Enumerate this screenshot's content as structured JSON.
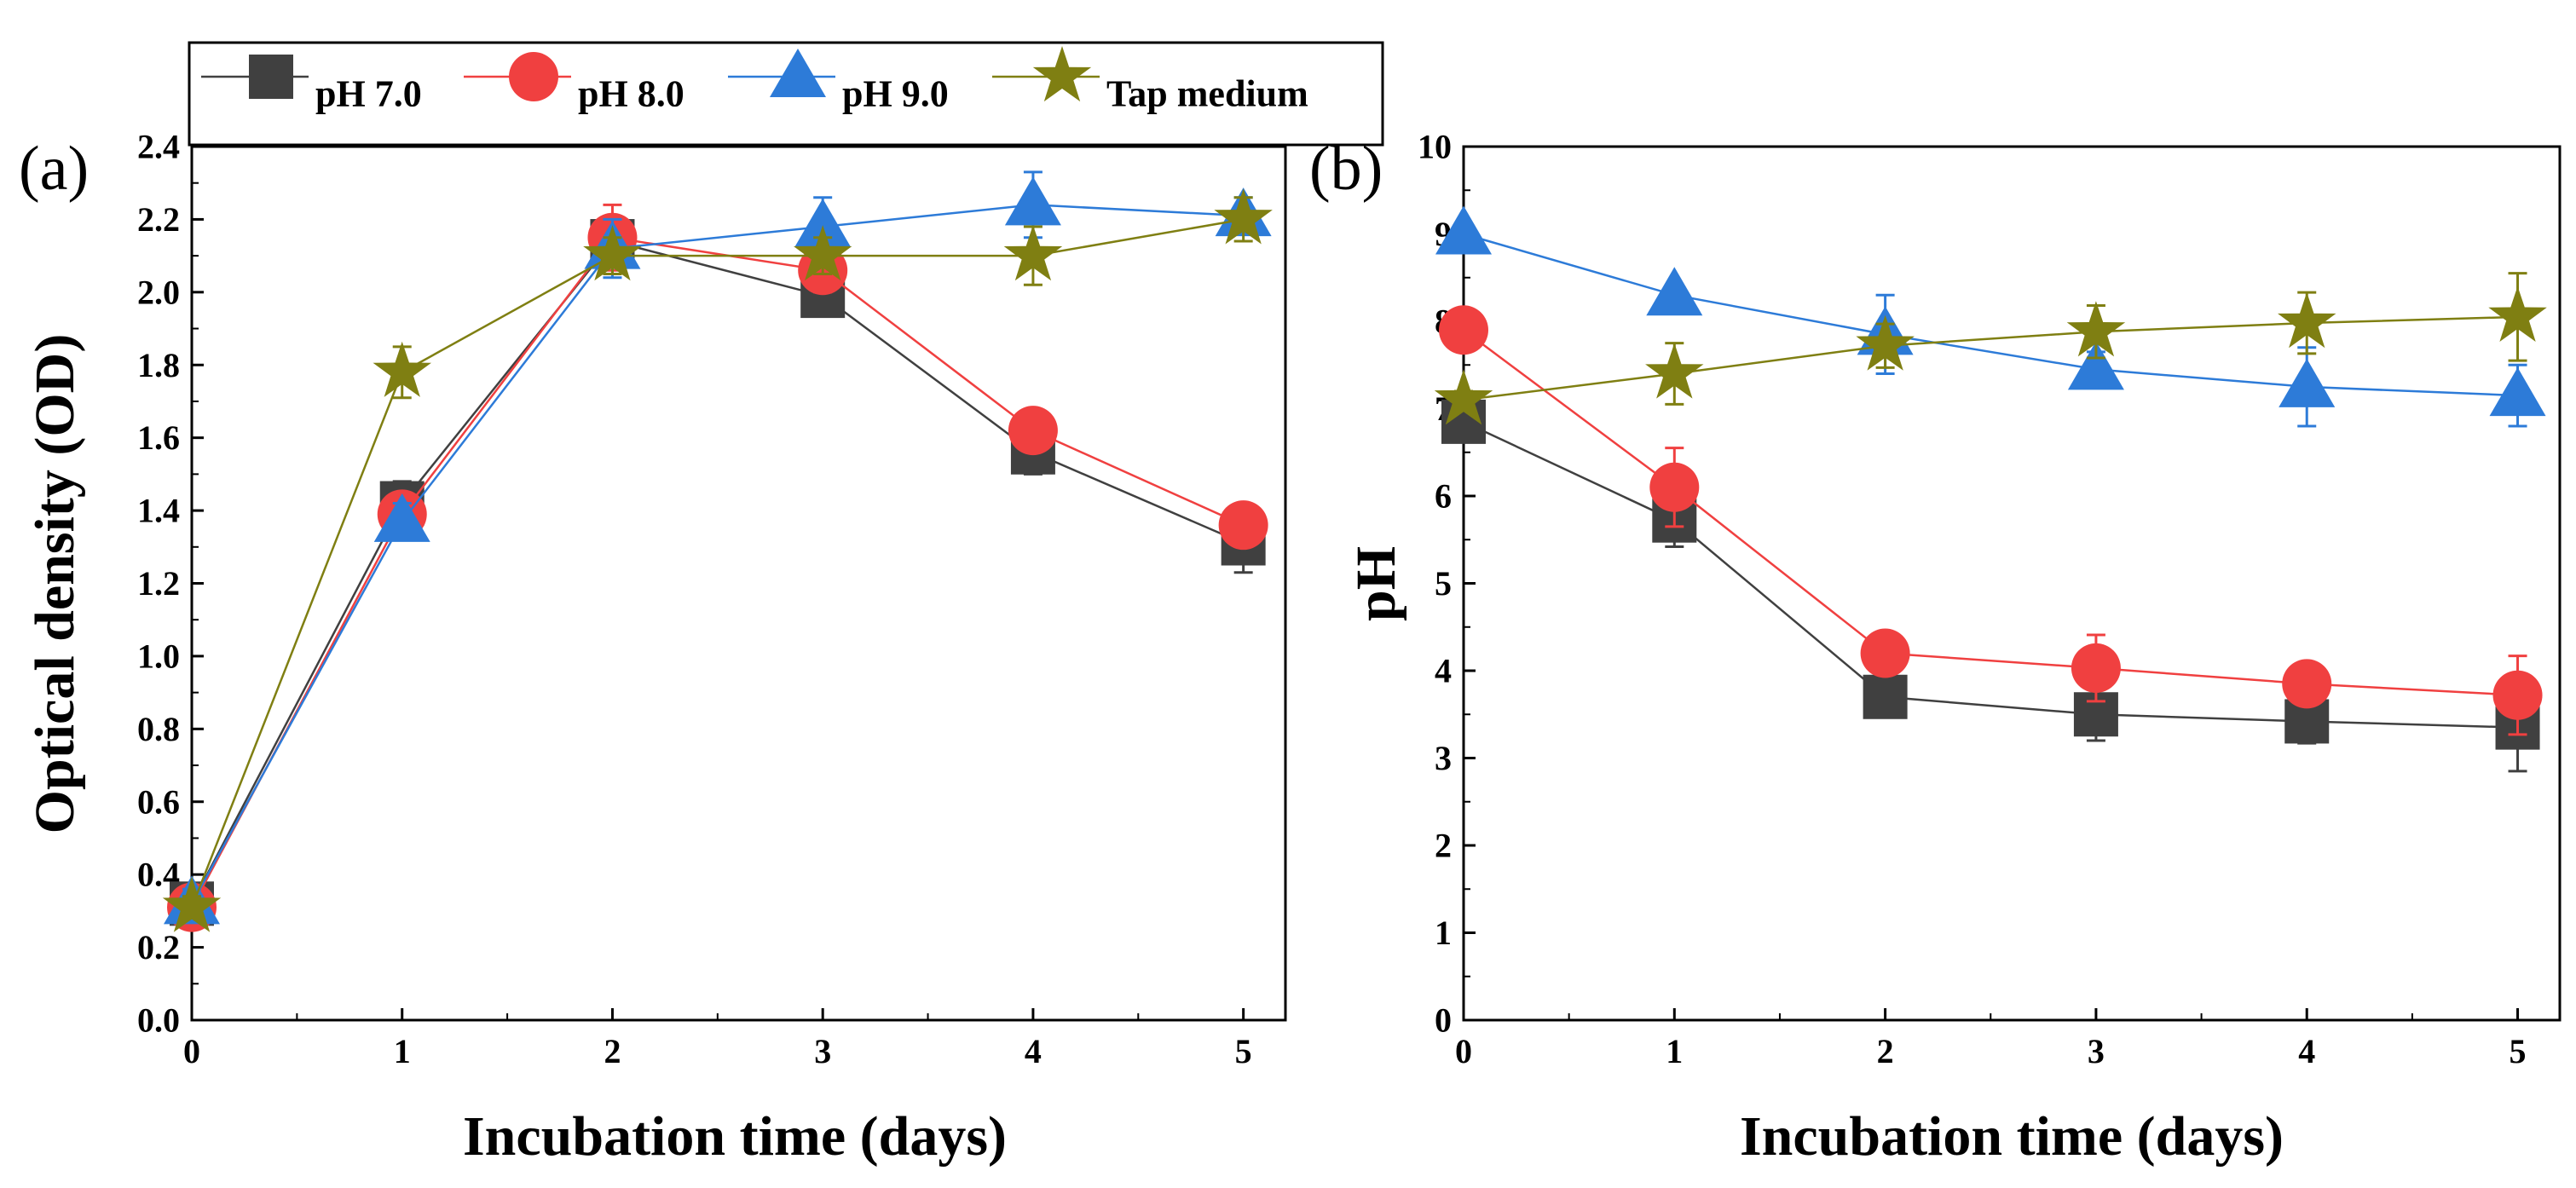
{
  "legend": [
    {
      "label": "pH 7.0",
      "color": "#404040",
      "marker": "square"
    },
    {
      "label": "pH 8.0",
      "color": "#F04040",
      "marker": "circle"
    },
    {
      "label": "pH 9.0",
      "color": "#2D7BD8",
      "marker": "triangle"
    },
    {
      "label": "Tap medium",
      "color": "#7F7F12",
      "marker": "star"
    }
  ],
  "chart_data": [
    {
      "type": "line",
      "panel_label": "(a)",
      "xlabel": "Incubation time (days)",
      "ylabel": "Optical density (OD)",
      "xlim": [
        0,
        5.2
      ],
      "ylim": [
        0,
        2.4
      ],
      "x": [
        0,
        1,
        2,
        3,
        4,
        5
      ],
      "xticks": [
        "0",
        "1",
        "2",
        "3",
        "4",
        "5"
      ],
      "yticks": [
        "0.0",
        "0.2",
        "0.4",
        "0.6",
        "0.8",
        "1.0",
        "1.2",
        "1.4",
        "1.6",
        "1.8",
        "2.0",
        "2.2",
        "2.4"
      ],
      "series": [
        {
          "name": "pH 7.0",
          "color": "#404040",
          "marker": "square",
          "values": [
            0.32,
            1.42,
            2.14,
            1.99,
            1.56,
            1.31
          ],
          "errors": [
            0.04,
            0.06,
            0.06,
            0.04,
            0.06,
            0.08
          ]
        },
        {
          "name": "pH 8.0",
          "color": "#F04040",
          "marker": "circle",
          "values": [
            0.31,
            1.39,
            2.15,
            2.06,
            1.62,
            1.36
          ],
          "errors": [
            0.03,
            0.05,
            0.09,
            0.06,
            0.02,
            0.04
          ]
        },
        {
          "name": "pH 9.0",
          "color": "#2D7BD8",
          "marker": "triangle",
          "values": [
            0.32,
            1.37,
            2.12,
            2.18,
            2.24,
            2.21
          ],
          "errors": [
            0.04,
            0.05,
            0.08,
            0.08,
            0.09,
            0.05
          ]
        },
        {
          "name": "Tap medium",
          "color": "#7F7F12",
          "marker": "star",
          "values": [
            0.31,
            1.78,
            2.1,
            2.1,
            2.1,
            2.2
          ],
          "errors": [
            0.03,
            0.07,
            0.05,
            0.05,
            0.08,
            0.06
          ]
        }
      ]
    },
    {
      "type": "line",
      "panel_label": "(b)",
      "xlabel": "Incubation time (days)",
      "ylabel": "pH",
      "xlim": [
        0,
        5.2
      ],
      "ylim": [
        0,
        10
      ],
      "x": [
        0,
        1,
        2,
        3,
        4,
        5
      ],
      "xticks": [
        "0",
        "1",
        "2",
        "3",
        "4",
        "5"
      ],
      "yticks": [
        "0",
        "1",
        "2",
        "3",
        "4",
        "5",
        "6",
        "7",
        "8",
        "9",
        "10"
      ],
      "series": [
        {
          "name": "pH 7.0",
          "color": "#404040",
          "marker": "square",
          "values": [
            6.85,
            5.72,
            3.7,
            3.5,
            3.42,
            3.35
          ],
          "errors": [
            0.08,
            0.3,
            0.1,
            0.3,
            0.25,
            0.5
          ]
        },
        {
          "name": "pH 8.0",
          "color": "#F04040",
          "marker": "circle",
          "values": [
            7.9,
            6.1,
            4.2,
            4.03,
            3.85,
            3.72
          ],
          "errors": [
            0.1,
            0.45,
            0.1,
            0.38,
            0.15,
            0.45
          ]
        },
        {
          "name": "pH 9.0",
          "color": "#2D7BD8",
          "marker": "triangle",
          "values": [
            9.0,
            8.3,
            7.85,
            7.45,
            7.25,
            7.15
          ],
          "errors": [
            0.05,
            0.1,
            0.45,
            0.2,
            0.45,
            0.35
          ]
        },
        {
          "name": "Tap medium",
          "color": "#7F7F12",
          "marker": "star",
          "values": [
            7.1,
            7.4,
            7.72,
            7.88,
            7.98,
            8.05
          ],
          "errors": [
            0.1,
            0.35,
            0.25,
            0.3,
            0.35,
            0.5
          ]
        }
      ]
    }
  ]
}
